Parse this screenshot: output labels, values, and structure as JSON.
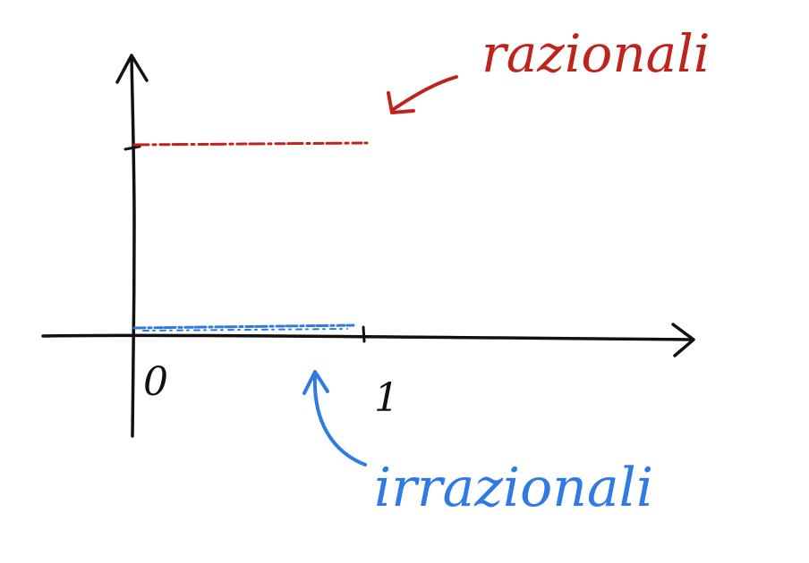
{
  "diagram": {
    "labels": {
      "rational": "razionali",
      "irrational": "irrazionali",
      "tick_zero": "0",
      "tick_one": "1"
    },
    "colors": {
      "axis": "#111111",
      "rational": "#c0231c",
      "irrational": "#2f7ae5",
      "background": "#ffffff"
    }
  }
}
